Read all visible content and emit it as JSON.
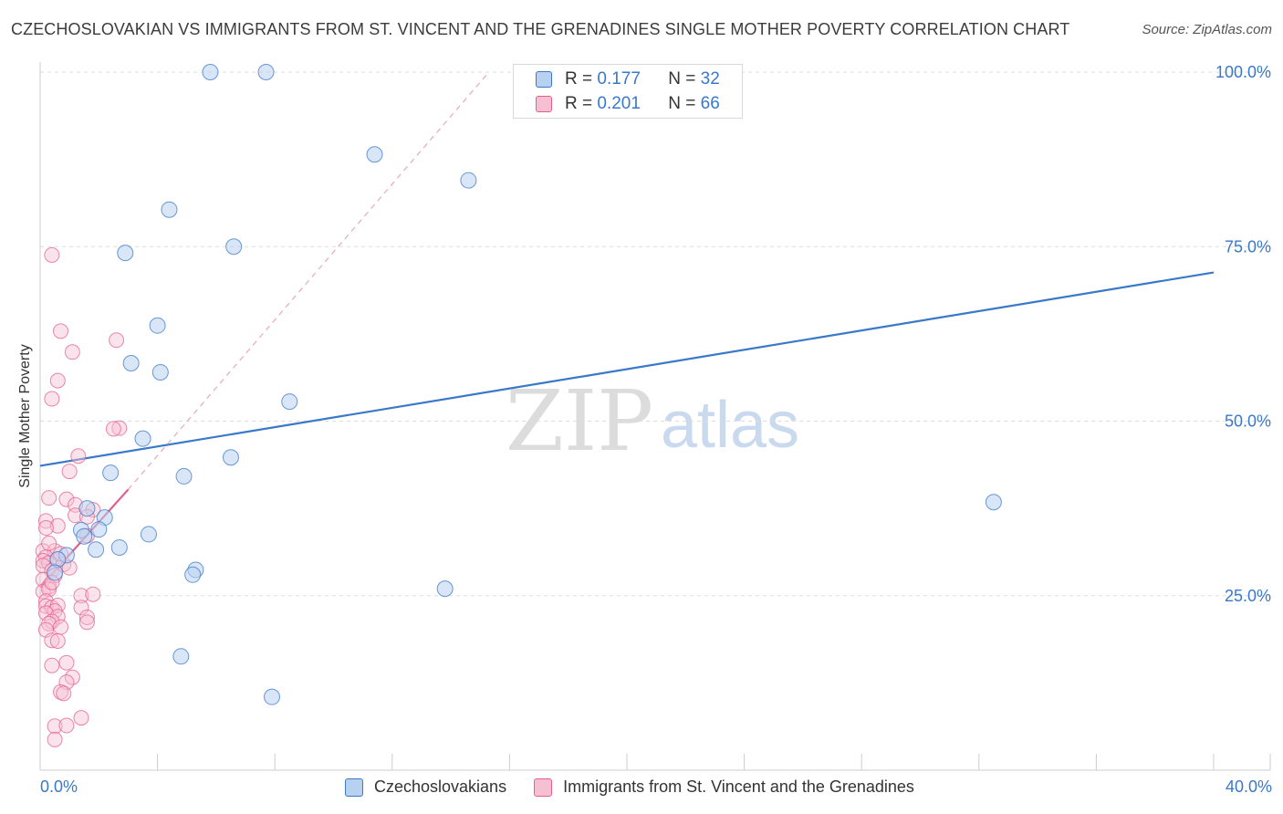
{
  "header": {
    "title": "CZECHOSLOVAKIAN VS IMMIGRANTS FROM ST. VINCENT AND THE GRENADINES SINGLE MOTHER POVERTY CORRELATION CHART",
    "source": "Source: ZipAtlas.com"
  },
  "watermark": {
    "zip": "ZIP",
    "atlas": "atlas"
  },
  "colors": {
    "blue": "#3a78c9",
    "blue_fill": "#b9d1f0",
    "pink": "#e4608c",
    "pink_fill": "#f7c0d2"
  },
  "correlation_box": {
    "rows": [
      {
        "r_label": "R =",
        "r_value": "0.177",
        "n_label": "N =",
        "n_value": "32"
      },
      {
        "r_label": "R =",
        "r_value": "0.201",
        "n_label": "N =",
        "n_value": "66"
      }
    ]
  },
  "legend": {
    "items": [
      {
        "label": "Czechoslovakians"
      },
      {
        "label": "Immigrants from St. Vincent and the Grenadines"
      }
    ]
  },
  "chart_data": {
    "type": "scatter",
    "title": "CZECHOSLOVAKIAN VS IMMIGRANTS FROM ST. VINCENT AND THE GRENADINES SINGLE MOTHER POVERTY CORRELATION CHART",
    "xlabel": "",
    "ylabel": "Single Mother Poverty",
    "xlim": [
      0,
      40
    ],
    "ylim": [
      0,
      100
    ],
    "x_tick_labels": [
      "0.0%",
      "40.0%"
    ],
    "y_tick_labels": [
      "25.0%",
      "50.0%",
      "75.0%",
      "100.0%"
    ],
    "y_ticks": [
      25,
      50,
      75,
      100
    ],
    "grid": true,
    "series": [
      {
        "name": "Czechoslovakians",
        "r": 0.177,
        "n": 32,
        "trend": {
          "x": [
            0,
            40
          ],
          "y": [
            43.6,
            71.3
          ]
        },
        "points": [
          [
            5.8,
            100.0
          ],
          [
            7.7,
            100.0
          ],
          [
            11.4,
            88.2
          ],
          [
            14.6,
            84.5
          ],
          [
            4.4,
            80.3
          ],
          [
            6.6,
            75.0
          ],
          [
            2.9,
            74.1
          ],
          [
            4.0,
            63.7
          ],
          [
            3.1,
            58.3
          ],
          [
            4.1,
            57.0
          ],
          [
            8.5,
            52.8
          ],
          [
            3.5,
            47.5
          ],
          [
            6.5,
            44.8
          ],
          [
            2.4,
            42.6
          ],
          [
            4.9,
            42.1
          ],
          [
            1.6,
            37.5
          ],
          [
            2.2,
            36.2
          ],
          [
            2.0,
            34.5
          ],
          [
            1.4,
            34.4
          ],
          [
            3.7,
            33.8
          ],
          [
            1.5,
            33.5
          ],
          [
            2.7,
            31.9
          ],
          [
            1.9,
            31.6
          ],
          [
            0.9,
            30.8
          ],
          [
            0.6,
            30.2
          ],
          [
            5.3,
            28.7
          ],
          [
            5.2,
            28.0
          ],
          [
            0.5,
            28.3
          ],
          [
            13.8,
            26.0
          ],
          [
            32.5,
            38.4
          ],
          [
            4.8,
            16.3
          ],
          [
            7.9,
            10.5
          ]
        ]
      },
      {
        "name": "Immigrants from St. Vincent and the Grenadines",
        "r": 0.201,
        "n": 66,
        "trend": {
          "x": [
            0,
            3.0
          ],
          "y": [
            26.2,
            40.2
          ],
          "dashed_extension": {
            "x": [
              3.0,
              15.3
            ],
            "y": [
              40.2,
              100.0
            ]
          }
        },
        "points": [
          [
            0.4,
            73.8
          ],
          [
            0.7,
            62.9
          ],
          [
            2.6,
            61.6
          ],
          [
            1.1,
            59.9
          ],
          [
            0.6,
            55.8
          ],
          [
            0.4,
            53.2
          ],
          [
            2.7,
            49.0
          ],
          [
            2.5,
            48.9
          ],
          [
            1.3,
            45.0
          ],
          [
            1.0,
            42.8
          ],
          [
            0.3,
            39.0
          ],
          [
            0.9,
            38.8
          ],
          [
            1.8,
            37.3
          ],
          [
            1.2,
            38.0
          ],
          [
            1.2,
            36.5
          ],
          [
            1.6,
            36.3
          ],
          [
            0.2,
            35.7
          ],
          [
            0.6,
            35.0
          ],
          [
            0.2,
            34.7
          ],
          [
            1.6,
            33.6
          ],
          [
            0.1,
            31.4
          ],
          [
            0.5,
            31.4
          ],
          [
            0.2,
            30.5
          ],
          [
            0.1,
            30.0
          ],
          [
            0.6,
            30.1
          ],
          [
            0.3,
            29.7
          ],
          [
            0.1,
            29.3
          ],
          [
            0.8,
            29.5
          ],
          [
            0.4,
            28.6
          ],
          [
            0.5,
            27.9
          ],
          [
            0.1,
            27.3
          ],
          [
            0.3,
            26.3
          ],
          [
            0.1,
            25.6
          ],
          [
            0.3,
            25.9
          ],
          [
            1.4,
            25.0
          ],
          [
            1.8,
            25.2
          ],
          [
            0.2,
            24.2
          ],
          [
            0.2,
            23.5
          ],
          [
            0.4,
            23.3
          ],
          [
            0.6,
            23.6
          ],
          [
            1.4,
            23.3
          ],
          [
            0.5,
            22.8
          ],
          [
            0.2,
            22.5
          ],
          [
            0.6,
            22.0
          ],
          [
            0.4,
            21.3
          ],
          [
            1.6,
            21.9
          ],
          [
            0.3,
            21.0
          ],
          [
            1.6,
            21.2
          ],
          [
            0.7,
            20.5
          ],
          [
            0.2,
            20.1
          ],
          [
            0.4,
            18.6
          ],
          [
            0.6,
            18.5
          ],
          [
            0.4,
            15.0
          ],
          [
            0.9,
            15.4
          ],
          [
            1.1,
            13.3
          ],
          [
            0.9,
            12.6
          ],
          [
            0.7,
            11.2
          ],
          [
            0.8,
            11.0
          ],
          [
            1.4,
            7.5
          ],
          [
            0.5,
            6.3
          ],
          [
            0.9,
            6.4
          ],
          [
            0.5,
            4.4
          ],
          [
            0.3,
            32.5
          ],
          [
            0.4,
            26.9
          ],
          [
            0.7,
            31.0
          ],
          [
            1.0,
            29.0
          ]
        ]
      }
    ]
  }
}
